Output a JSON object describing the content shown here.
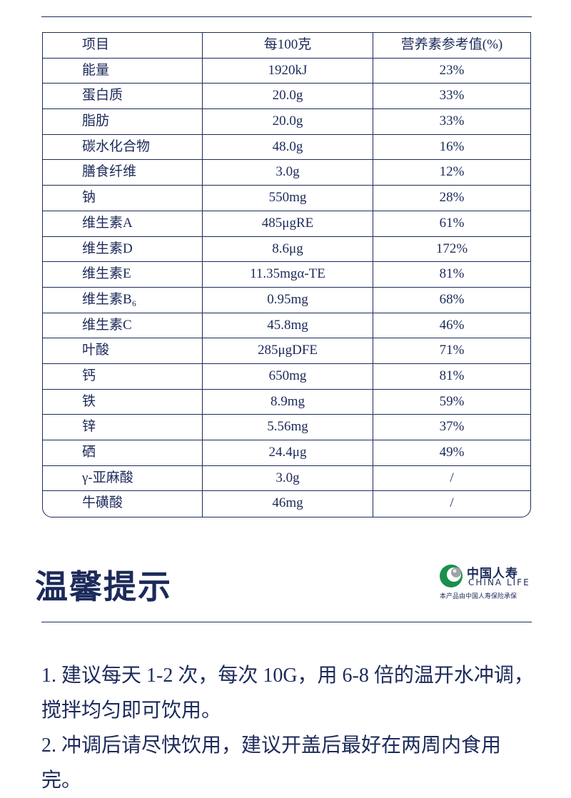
{
  "table": {
    "headers": [
      "项目",
      "每100克",
      "营养素参考值(%)"
    ],
    "rows": [
      [
        "能量",
        "1920kJ",
        "23%"
      ],
      [
        "蛋白质",
        "20.0g",
        "33%"
      ],
      [
        "脂肪",
        "20.0g",
        "33%"
      ],
      [
        "碳水化合物",
        "48.0g",
        "16%"
      ],
      [
        "膳食纤维",
        "3.0g",
        "12%"
      ],
      [
        "钠",
        "550mg",
        "28%"
      ],
      [
        "维生素A",
        "485μgRE",
        "61%"
      ],
      [
        "维生素D",
        "8.6μg",
        "172%"
      ],
      [
        "维生素E",
        "11.35mgα-TE",
        "81%"
      ],
      [
        "维生素B₆",
        "0.95mg",
        "68%"
      ],
      [
        "维生素C",
        "45.8mg",
        "46%"
      ],
      [
        "叶酸",
        "285μgDFE",
        "71%"
      ],
      [
        "钙",
        "650mg",
        "81%"
      ],
      [
        "铁",
        "8.9mg",
        "59%"
      ],
      [
        "锌",
        "5.56mg",
        "37%"
      ],
      [
        "硒",
        "24.4μg",
        "49%"
      ],
      [
        "γ-亚麻酸",
        "3.0g",
        "/"
      ],
      [
        "牛磺酸",
        "46mg",
        "/"
      ]
    ]
  },
  "section": {
    "title": "温馨提示"
  },
  "brand": {
    "name_cn": "中国人寿",
    "name_en": "CHINA  LIFE",
    "note": "本产品由中国人寿保险承保",
    "colors": {
      "green": "#1a8f4c",
      "navy": "#1c2a5a"
    }
  },
  "tips": [
    "1. 建议每天 1-2 次，每次 10G，用 6-8 倍的温开水冲调，搅拌均匀即可饮用。",
    "2. 冲调后请尽快饮用，建议开盖后最好在两周内食用完。"
  ]
}
